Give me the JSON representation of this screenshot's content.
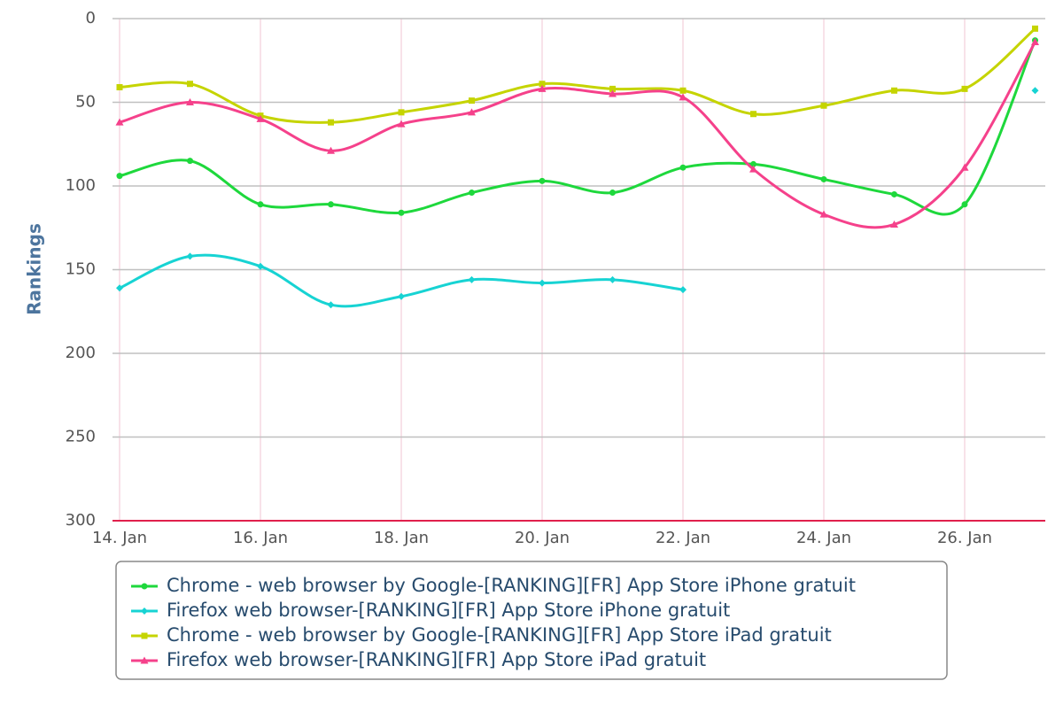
{
  "chart_data": {
    "type": "line",
    "smooth": true,
    "y_label": "Rankings",
    "categories": [
      "14. Jan",
      null,
      "16. Jan",
      null,
      "18. Jan",
      null,
      "20. Jan",
      null,
      "22. Jan",
      null,
      "24. Jan",
      null,
      "26. Jan",
      null
    ],
    "ylim": [
      0,
      300
    ],
    "yticks": [
      0,
      50,
      100,
      150,
      200,
      250,
      300
    ],
    "reversed": true,
    "grid": true,
    "series": [
      {
        "name": "Chrome - web browser by Google-[RANKING][FR] App Store iPhone gratuit",
        "color": "#1ed83c",
        "marker": "circle",
        "values": [
          94,
          85,
          111,
          111,
          116,
          104,
          97,
          104,
          89,
          87,
          96,
          105,
          111,
          13
        ]
      },
      {
        "name": "Firefox web browser-[RANKING][FR] App Store iPhone gratuit",
        "color": "#17d3d3",
        "marker": "diamond",
        "values": [
          161,
          142,
          148,
          171,
          166,
          156,
          158,
          156,
          162,
          null,
          null,
          null,
          null,
          43
        ]
      },
      {
        "name": "Chrome - web browser by Google-[RANKING][FR] App Store iPad gratuit",
        "color": "#c5d400",
        "marker": "square",
        "values": [
          41,
          39,
          58,
          62,
          56,
          49,
          39,
          42,
          43,
          57,
          52,
          43,
          42,
          6
        ]
      },
      {
        "name": "Firefox web browser-[RANKING][FR] App Store iPad gratuit",
        "color": "#f5418b",
        "marker": "triangle",
        "values": [
          62,
          50,
          60,
          79,
          63,
          56,
          42,
          45,
          47,
          90,
          117,
          123,
          89,
          14
        ]
      }
    ]
  }
}
